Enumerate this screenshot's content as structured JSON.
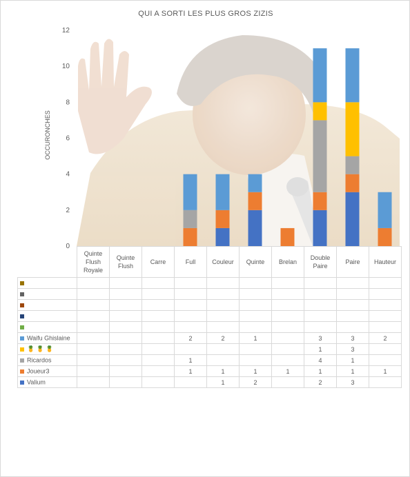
{
  "chart_data": {
    "type": "bar",
    "stacked": true,
    "title": "QUI A SORTI LES PLUS GROS ZIZIS",
    "ylabel": "OCCURONCHES",
    "xlabel": "",
    "ylim": [
      0,
      12
    ],
    "yticks": [
      "0",
      "2",
      "4",
      "6",
      "8",
      "10",
      "12"
    ],
    "grid": false,
    "legend_placement": "data-table",
    "background_image": "photo of a laughing man in a beige suit raising his hand, faded",
    "categories": [
      "Quinte Flush Royale",
      "Quinte Flush",
      "Carre",
      "Full",
      "Couleur",
      "Quinte",
      "Brelan",
      "Double Paire",
      "Paire",
      "Hauteur"
    ],
    "series": [
      {
        "name": "Valium",
        "color": "#4472c4",
        "values": [
          null,
          null,
          null,
          null,
          1,
          2,
          null,
          2,
          3,
          null
        ]
      },
      {
        "name": "Joueur3",
        "color": "#ed7d31",
        "values": [
          null,
          null,
          null,
          1,
          1,
          1,
          1,
          1,
          1,
          1
        ]
      },
      {
        "name": "Ricardos",
        "color": "#a5a5a5",
        "values": [
          null,
          null,
          null,
          1,
          null,
          null,
          null,
          4,
          1,
          null
        ]
      },
      {
        "name": "🍍 🍍 🍍",
        "color": "#ffc000",
        "values": [
          null,
          null,
          null,
          null,
          null,
          null,
          null,
          1,
          3,
          null
        ]
      },
      {
        "name": "Waifu Ghislaine",
        "color": "#5b9bd5",
        "values": [
          null,
          null,
          null,
          2,
          2,
          1,
          null,
          3,
          3,
          2
        ]
      },
      {
        "name": "",
        "color": "#70ad47",
        "values": [
          null,
          null,
          null,
          null,
          null,
          null,
          null,
          null,
          null,
          null
        ]
      },
      {
        "name": "",
        "color": "#264478",
        "values": [
          null,
          null,
          null,
          null,
          null,
          null,
          null,
          null,
          null,
          null
        ]
      },
      {
        "name": "",
        "color": "#9e480e",
        "values": [
          null,
          null,
          null,
          null,
          null,
          null,
          null,
          null,
          null,
          null
        ]
      },
      {
        "name": "",
        "color": "#636363",
        "values": [
          null,
          null,
          null,
          null,
          null,
          null,
          null,
          null,
          null,
          null
        ]
      },
      {
        "name": "",
        "color": "#997300",
        "values": [
          null,
          null,
          null,
          null,
          null,
          null,
          null,
          null,
          null,
          null
        ]
      }
    ]
  }
}
